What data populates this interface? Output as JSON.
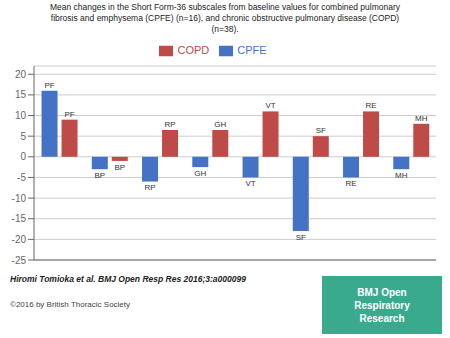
{
  "chart_data": {
    "type": "bar",
    "title": "Mean changes in the Short Form-36 subscales from baseline values for combined pulmonary\nfibrosis and emphysema (CPFE) (n=16), and chronic obstructive pulmonary disease (COPD)\n(n=38).",
    "categories": [
      "PF",
      "BP",
      "RP",
      "GH",
      "VT",
      "SF",
      "RE",
      "MH"
    ],
    "series": [
      {
        "name": "CPFE",
        "color": "#4472C4",
        "values": [
          16,
          -3,
          -6,
          -2.5,
          -5,
          -18,
          -5,
          -3
        ]
      },
      {
        "name": "COPD",
        "color": "#BE4B48",
        "values": [
          9,
          -1,
          6.5,
          6.5,
          11,
          5,
          11,
          8
        ]
      }
    ],
    "ylim": [
      -25,
      22
    ],
    "yticks": [
      -25,
      -20,
      -15,
      -10,
      -5,
      0,
      5,
      10,
      15,
      20
    ],
    "grid": true,
    "legend": "top",
    "tick_labels": "y",
    "annotations": [
      "Hiromi Tomioka et al. BMJ Open Resp Res 2016;3:a000099",
      "©2016 by British Thoracic Society",
      "BMJ Open\nRespiratory\nResearch"
    ]
  }
}
